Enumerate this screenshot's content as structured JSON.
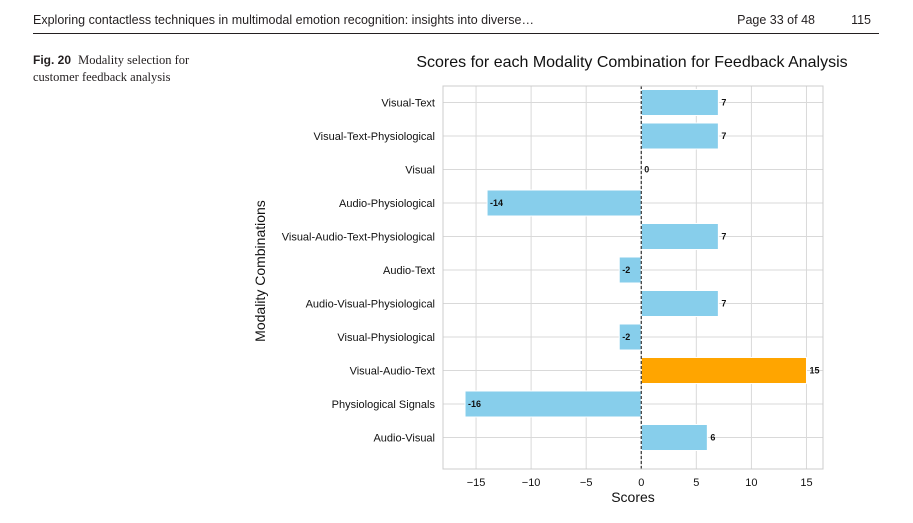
{
  "header": {
    "running_title": "Exploring contactless techniques in multimodal emotion recognition: insights into diverse…",
    "page_label": "Page 33 of 48",
    "folio": "115"
  },
  "caption": {
    "figure_label": "Fig. 20",
    "text": "Modality selection for customer feedback analysis"
  },
  "colors": {
    "bar": "#87ceeb",
    "highlight": "#ffa500",
    "grid": "#d9d9d9",
    "zero_line": "#333333"
  },
  "chart_data": {
    "type": "bar",
    "orientation": "horizontal",
    "title": "Scores for each Modality Combination for Feedback Analysis",
    "xlabel": "Scores",
    "ylabel": "Modality Combinations",
    "xlim": [
      -18,
      16.5
    ],
    "xticks": [
      -15,
      -10,
      -5,
      0,
      5,
      10,
      15
    ],
    "grid": true,
    "categories": [
      "Visual-Text",
      "Visual-Text-Physiological",
      "Visual",
      "Audio-Physiological",
      "Visual-Audio-Text-Physiological",
      "Audio-Text",
      "Audio-Visual-Physiological",
      "Visual-Physiological",
      "Visual-Audio-Text",
      "Physiological Signals",
      "Audio-Visual"
    ],
    "values": [
      7,
      7,
      0,
      -14,
      7,
      -2,
      7,
      -2,
      15,
      -16,
      6
    ],
    "highlighted": "Visual-Audio-Text"
  }
}
